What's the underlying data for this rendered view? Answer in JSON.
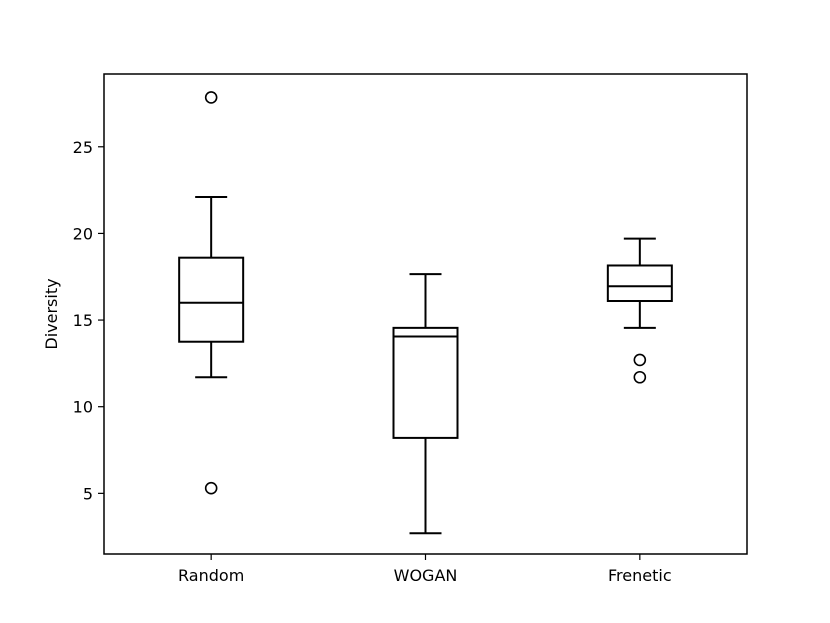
{
  "chart_data": {
    "type": "box",
    "title": "",
    "xlabel": "",
    "ylabel": "Diversity",
    "ylim": [
      1.5,
      29.2
    ],
    "yticks": [
      5,
      10,
      15,
      20,
      25
    ],
    "categories": [
      "Random",
      "WOGAN",
      "Frenetic"
    ],
    "boxes": [
      {
        "category": "Random",
        "whisker_low": 11.7,
        "q1": 13.75,
        "median": 16.0,
        "q3": 18.6,
        "whisker_high": 22.1,
        "outliers": [
          27.85,
          5.3
        ]
      },
      {
        "category": "WOGAN",
        "whisker_low": 2.7,
        "q1": 8.2,
        "median": 14.05,
        "q3": 14.55,
        "whisker_high": 17.65,
        "outliers": []
      },
      {
        "category": "Frenetic",
        "whisker_low": 14.55,
        "q1": 16.1,
        "median": 16.95,
        "q3": 18.15,
        "whisker_high": 19.7,
        "outliers": [
          12.7,
          11.7
        ]
      }
    ],
    "grid": false,
    "legend": false
  }
}
